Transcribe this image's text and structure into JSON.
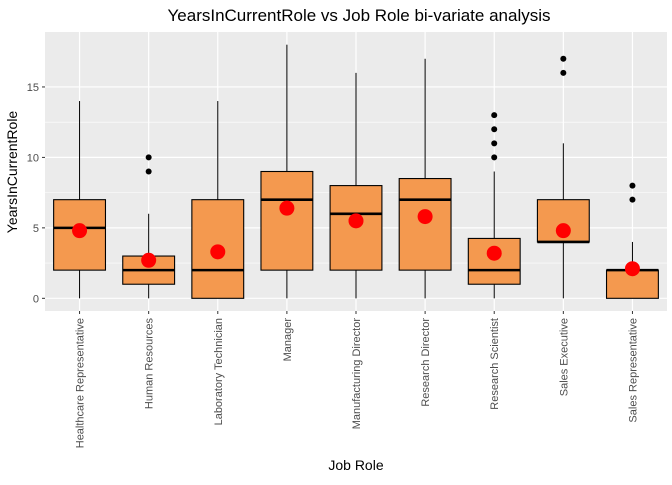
{
  "chart_data": {
    "type": "box",
    "title": "YearsInCurrentRole vs Job Role bi-variate analysis",
    "xlabel": "Job Role",
    "ylabel": "YearsInCurrentRole",
    "ylim": [
      -0.9,
      18.9
    ],
    "yticks": [
      0,
      5,
      10,
      15
    ],
    "grid": true,
    "box_fill": "#F4994F",
    "mean_color": "#FF0000",
    "panel_bg": "#EBEBEB",
    "categories": [
      "Healthcare Representative",
      "Human Resources",
      "Laboratory Technician",
      "Manager",
      "Manufacturing Director",
      "Research Director",
      "Research Scientist",
      "Sales Executive",
      "Sales Representative"
    ],
    "boxes": [
      {
        "min": 0,
        "q1": 2,
        "median": 5,
        "q3": 7,
        "max": 14,
        "mean": 4.8,
        "outliers": []
      },
      {
        "min": 0,
        "q1": 1,
        "median": 2,
        "q3": 3,
        "max": 6,
        "mean": 2.7,
        "outliers": [
          9,
          10
        ]
      },
      {
        "min": 0,
        "q1": 0,
        "median": 2,
        "q3": 7,
        "max": 14,
        "mean": 3.3,
        "outliers": []
      },
      {
        "min": 0,
        "q1": 2,
        "median": 7,
        "q3": 9,
        "max": 18,
        "mean": 6.4,
        "outliers": []
      },
      {
        "min": 0,
        "q1": 2,
        "median": 6,
        "q3": 8,
        "max": 16,
        "mean": 5.5,
        "outliers": []
      },
      {
        "min": 0,
        "q1": 2,
        "median": 7,
        "q3": 8.5,
        "max": 17,
        "mean": 5.8,
        "outliers": []
      },
      {
        "min": 0,
        "q1": 1,
        "median": 2,
        "q3": 4.25,
        "max": 9,
        "mean": 3.2,
        "outliers": [
          10,
          11,
          12,
          13
        ]
      },
      {
        "min": 0,
        "q1": 4,
        "median": 4,
        "q3": 7,
        "max": 11,
        "mean": 4.8,
        "outliers": [
          16,
          17
        ]
      },
      {
        "min": 0,
        "q1": 0,
        "median": 2,
        "q3": 2,
        "max": 4,
        "mean": 2.1,
        "outliers": [
          7,
          8
        ]
      }
    ]
  }
}
